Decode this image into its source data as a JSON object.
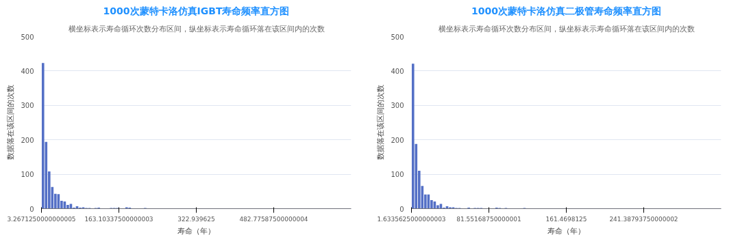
{
  "chart_data": [
    {
      "type": "histogram",
      "title": "1000次蒙特卡洛仿真IGBT寿命频率直方图",
      "subtitle": "横坐标表示寿命循环次数分布区间，纵坐标表示寿命循环落在该区间内的次数",
      "xlabel": "寿命（年）",
      "ylabel": "数据落在该区间的次数",
      "color": "#5470c6",
      "grid": "y",
      "bins": [
        3.267125,
        9.66,
        16.05,
        22.45,
        28.84,
        35.23,
        41.63,
        48.02,
        54.42,
        60.81,
        67.2,
        73.6,
        79.99,
        86.38,
        92.78,
        99.17,
        105.56,
        111.96,
        118.35,
        124.74,
        131.14,
        137.53,
        143.92,
        150.32,
        156.71,
        163.1,
        169.5,
        175.89,
        182.28,
        188.68,
        195.07,
        201.46,
        207.86,
        214.25,
        220.64,
        227.04,
        233.43,
        239.82,
        246.22,
        252.61,
        259.0,
        265.4,
        271.79,
        278.18,
        284.58,
        290.97,
        297.37,
        303.76,
        310.15,
        316.55,
        322.94,
        329.33,
        335.73,
        342.12,
        348.51,
        354.91,
        361.3,
        367.69,
        374.09,
        380.48,
        386.87,
        393.27,
        399.66,
        406.05,
        412.45,
        418.84,
        425.23,
        431.63,
        438.02,
        444.42,
        450.81,
        457.2,
        463.6,
        469.99,
        476.38,
        482.78,
        489.17,
        495.56,
        501.96,
        508.35,
        514.74,
        521.14,
        527.53,
        533.92,
        540.32,
        546.71,
        553.1,
        559.5,
        565.89,
        572.28,
        578.68,
        585.07,
        591.47,
        597.86,
        604.25,
        610.65,
        617.04,
        623.43,
        629.83,
        636.22,
        642.61
      ],
      "values": [
        423,
        194,
        108,
        63,
        43,
        42,
        23,
        21,
        11,
        14,
        3,
        7,
        3,
        4,
        2,
        2,
        0,
        2,
        3,
        1,
        0,
        1,
        2,
        2,
        2,
        1,
        1,
        4,
        3,
        0,
        1,
        0,
        1,
        2,
        1,
        1,
        1,
        1,
        0,
        0,
        0,
        0,
        1,
        1,
        0,
        0,
        0,
        0,
        0,
        0,
        0,
        0,
        1,
        0,
        0,
        1,
        0,
        0,
        0,
        0,
        0,
        0,
        0,
        0,
        0,
        0,
        0,
        1,
        0,
        0,
        0,
        0,
        0,
        0,
        0,
        0,
        0,
        0,
        0,
        0,
        0,
        0,
        0,
        0,
        0,
        0,
        0,
        0,
        0,
        0,
        0,
        0,
        0,
        0,
        0,
        0,
        0,
        0,
        0,
        1
      ],
      "xlim": [
        3.267125,
        642.61
      ],
      "ylim": [
        0,
        500
      ],
      "yticks": [
        0,
        100,
        200,
        300,
        400,
        500
      ],
      "xticks": [
        {
          "value": 3.267125,
          "label": "3.2671250000000005"
        },
        {
          "value": 163.103375,
          "label": "163.10337500000003"
        },
        {
          "value": 322.939625,
          "label": "322.939625"
        },
        {
          "value": 482.775875,
          "label": "482.77587500000004"
        }
      ]
    },
    {
      "type": "histogram",
      "title": "1000次蒙特卡洛仿真二极管寿命频率直方图",
      "subtitle": "横坐标表示寿命循环次数分布区间，纵坐标表示寿命循环落在该区间内的次数",
      "xlabel": "寿命（年）",
      "ylabel": "数据落在该区间的次数",
      "color": "#5470c6",
      "grid": "y",
      "bins": [
        1.6335625,
        4.83,
        8.03,
        11.22,
        14.42,
        17.62,
        20.81,
        24.01,
        27.21,
        30.4,
        33.6,
        36.8,
        39.99,
        43.19,
        46.39,
        49.58,
        52.78,
        55.98,
        59.17,
        62.37,
        65.57,
        68.76,
        71.96,
        75.16,
        78.35,
        81.55,
        84.75,
        87.95,
        91.14,
        94.34,
        97.54,
        100.73,
        103.93,
        107.13,
        110.32,
        113.52,
        116.72,
        119.91,
        123.11,
        126.31,
        129.5,
        132.7,
        135.9,
        139.09,
        142.29,
        145.49,
        148.68,
        151.88,
        155.08,
        158.27,
        161.47,
        164.67,
        167.86,
        171.06,
        174.26,
        177.45,
        180.65,
        183.85,
        187.04,
        190.24,
        193.44,
        196.63,
        199.83,
        203.03,
        206.22,
        209.42,
        212.62,
        215.81,
        219.01,
        222.21,
        225.4,
        228.6,
        231.8,
        234.99,
        238.19,
        241.39,
        244.58,
        247.78,
        250.98,
        254.17,
        257.37,
        260.57,
        263.76,
        266.96,
        270.16,
        273.35,
        276.55,
        279.75,
        282.94,
        286.14,
        289.34,
        292.53,
        295.73,
        298.93,
        302.12,
        305.32,
        308.52,
        311.71,
        314.91,
        318.11,
        321.3
      ],
      "values": [
        421,
        188,
        110,
        66,
        41,
        41,
        25,
        21,
        10,
        14,
        3,
        7,
        4,
        4,
        2,
        2,
        0,
        1,
        3,
        0,
        2,
        2,
        2,
        1,
        0,
        0,
        1,
        3,
        2,
        0,
        2,
        0,
        1,
        1,
        1,
        1,
        2,
        1,
        0,
        0,
        0,
        0,
        1,
        1,
        0,
        0,
        0,
        0,
        0,
        1,
        1,
        0,
        0,
        0,
        0,
        0,
        0,
        0,
        0,
        0,
        0,
        0,
        0,
        0,
        1,
        0,
        0,
        0,
        0,
        0,
        0,
        0,
        0,
        0,
        0,
        0,
        0,
        0,
        0,
        0,
        0,
        0,
        0,
        0,
        0,
        0,
        0,
        0,
        0,
        0,
        0,
        0,
        0,
        0,
        0,
        0,
        0,
        0,
        0,
        1
      ],
      "xlim": [
        1.6335625,
        321.3
      ],
      "ylim": [
        0,
        500
      ],
      "yticks": [
        0,
        100,
        200,
        300,
        400,
        500
      ],
      "xticks": [
        {
          "value": 1.6335625,
          "label": "1.6335625000000003"
        },
        {
          "value": 81.5516875,
          "label": "81.55168750000001"
        },
        {
          "value": 161.4698125,
          "label": "161.4698125"
        },
        {
          "value": 241.3879375,
          "label": "241.38793750000002"
        }
      ]
    }
  ]
}
